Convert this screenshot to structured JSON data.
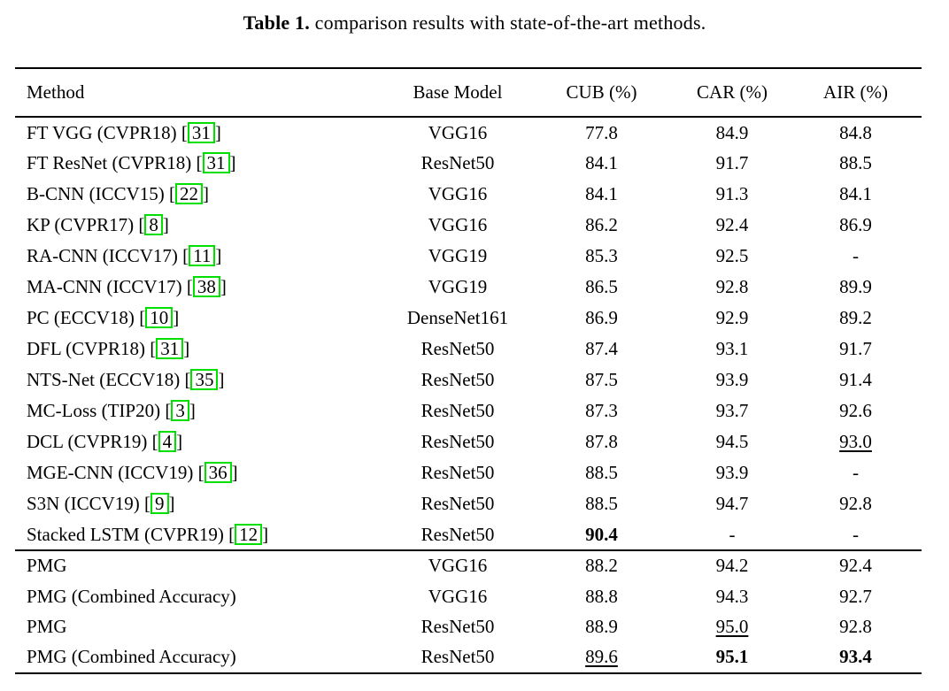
{
  "caption": {
    "label": "Table 1.",
    "text": "comparison results with state-of-the-art methods."
  },
  "table": {
    "headers": [
      "Method",
      "Base Model",
      "CUB (%)",
      "CAR (%)",
      "AIR (%)"
    ],
    "link_box_color": "#00e000",
    "text_color": "#000000",
    "groups": [
      {
        "tbody": "body-sota",
        "rows": [
          {
            "method": "FT VGG (CVPR18)",
            "cite": "31",
            "base": {
              "text": "VGG16"
            },
            "cub": {
              "text": "77.8"
            },
            "car": {
              "text": "84.9"
            },
            "air": {
              "text": "84.8"
            }
          },
          {
            "method": "FT ResNet (CVPR18)",
            "cite": "31",
            "base": {
              "text": "ResNet50"
            },
            "cub": {
              "text": "84.1"
            },
            "car": {
              "text": "91.7"
            },
            "air": {
              "text": "88.5"
            }
          },
          {
            "method": "B-CNN (ICCV15)",
            "cite": "22",
            "base": {
              "text": "VGG16"
            },
            "cub": {
              "text": "84.1"
            },
            "car": {
              "text": "91.3"
            },
            "air": {
              "text": "84.1"
            }
          },
          {
            "method": "KP (CVPR17)",
            "cite": "8",
            "base": {
              "text": "VGG16"
            },
            "cub": {
              "text": "86.2"
            },
            "car": {
              "text": "92.4"
            },
            "air": {
              "text": "86.9"
            }
          },
          {
            "method": "RA-CNN (ICCV17)",
            "cite": "11",
            "base": {
              "text": "VGG19"
            },
            "cub": {
              "text": "85.3"
            },
            "car": {
              "text": "92.5"
            },
            "air": {
              "text": "-"
            }
          },
          {
            "method": "MA-CNN (ICCV17)",
            "cite": "38",
            "base": {
              "text": "VGG19"
            },
            "cub": {
              "text": "86.5"
            },
            "car": {
              "text": "92.8"
            },
            "air": {
              "text": "89.9"
            }
          },
          {
            "method": "PC (ECCV18)",
            "cite": "10",
            "base": {
              "text": "DenseNet161"
            },
            "cub": {
              "text": "86.9"
            },
            "car": {
              "text": "92.9"
            },
            "air": {
              "text": "89.2"
            }
          },
          {
            "method": "DFL (CVPR18)",
            "cite": "31",
            "base": {
              "text": "ResNet50"
            },
            "cub": {
              "text": "87.4"
            },
            "car": {
              "text": "93.1"
            },
            "air": {
              "text": "91.7"
            }
          },
          {
            "method": "NTS-Net (ECCV18)",
            "cite": "35",
            "base": {
              "text": "ResNet50"
            },
            "cub": {
              "text": "87.5"
            },
            "car": {
              "text": "93.9"
            },
            "air": {
              "text": "91.4"
            }
          },
          {
            "method": "MC-Loss (TIP20)",
            "cite": "3",
            "base": {
              "text": "ResNet50"
            },
            "cub": {
              "text": "87.3"
            },
            "car": {
              "text": "93.7"
            },
            "air": {
              "text": "92.6"
            }
          },
          {
            "method": "DCL (CVPR19)",
            "cite": "4",
            "base": {
              "text": "ResNet50"
            },
            "cub": {
              "text": "87.8"
            },
            "car": {
              "text": "94.5"
            },
            "air": {
              "text": "93.0",
              "style": "underline"
            }
          },
          {
            "method": "MGE-CNN (ICCV19)",
            "cite": "36",
            "base": {
              "text": "ResNet50"
            },
            "cub": {
              "text": "88.5"
            },
            "car": {
              "text": "93.9"
            },
            "air": {
              "text": "-"
            }
          },
          {
            "method": "S3N (ICCV19)",
            "cite": "9",
            "base": {
              "text": "ResNet50"
            },
            "cub": {
              "text": "88.5"
            },
            "car": {
              "text": "94.7"
            },
            "air": {
              "text": "92.8"
            }
          },
          {
            "method": "Stacked LSTM (CVPR19)",
            "cite": "12",
            "base": {
              "text": "ResNet50"
            },
            "cub": {
              "text": "90.4",
              "style": "bold"
            },
            "car": {
              "text": "-"
            },
            "air": {
              "text": "-"
            }
          }
        ]
      },
      {
        "tbody": "body-ours",
        "rows": [
          {
            "method": "PMG",
            "cite": null,
            "base": {
              "text": "VGG16"
            },
            "cub": {
              "text": "88.2"
            },
            "car": {
              "text": "94.2"
            },
            "air": {
              "text": "92.4"
            }
          },
          {
            "method": "PMG (Combined Accuracy)",
            "cite": null,
            "base": {
              "text": "VGG16"
            },
            "cub": {
              "text": "88.8"
            },
            "car": {
              "text": "94.3"
            },
            "air": {
              "text": "92.7"
            }
          },
          {
            "method": "PMG",
            "cite": null,
            "base": {
              "text": "ResNet50"
            },
            "cub": {
              "text": "88.9"
            },
            "car": {
              "text": "95.0",
              "style": "underline"
            },
            "air": {
              "text": "92.8"
            }
          },
          {
            "method": "PMG (Combined Accuracy)",
            "cite": null,
            "base": {
              "text": "ResNet50"
            },
            "cub": {
              "text": "89.6",
              "style": "underline"
            },
            "car": {
              "text": "95.1",
              "style": "bold"
            },
            "air": {
              "text": "93.4",
              "style": "bold"
            }
          }
        ]
      }
    ]
  }
}
